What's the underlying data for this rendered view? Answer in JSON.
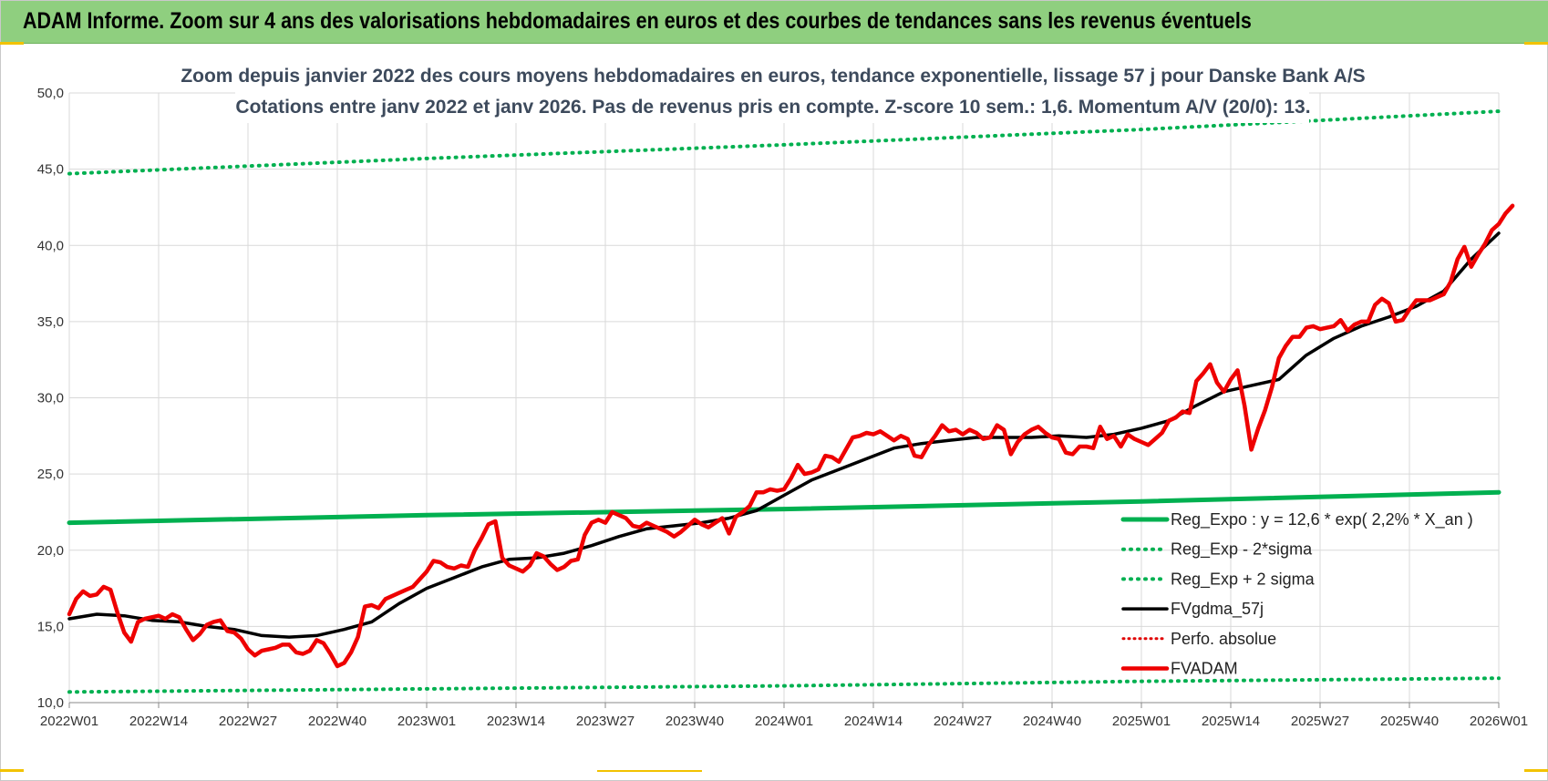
{
  "banner": {
    "title": "ADAM Informe. Zoom sur 4 ans des valorisations hebdomadaires en euros et des courbes de tendances sans les revenus éventuels"
  },
  "colors": {
    "banner": "#8fcf7f",
    "regexpo": "#00b050",
    "bands": "#00b050",
    "smooth": "#000000",
    "perfo": "#e00000",
    "fvadam": "#ee0000",
    "grid": "#d9d9d9"
  },
  "chart_data": {
    "type": "line",
    "title": "Zoom depuis janvier 2022 des cours moyens hebdomadaires en euros, tendance exponentielle, lissage 57 j pour Danske Bank A/S",
    "subtitle": "Cotations entre janv 2022 et janv 2026. Pas de revenus pris en compte. Z-score 10 sem.: 1,6. Momentum A/V (20/0): 13.",
    "xlabel": "",
    "ylabel": "",
    "x_tick_labels": [
      "2022W01",
      "2022W14",
      "2022W27",
      "2022W40",
      "2023W01",
      "2023W14",
      "2023W27",
      "2023W40",
      "2024W01",
      "2024W14",
      "2024W27",
      "2024W40",
      "2025W01",
      "2025W14",
      "2025W27",
      "2025W40",
      "2026W01"
    ],
    "y_tick_labels": [
      "10,0",
      "15,0",
      "20,0",
      "25,0",
      "30,0",
      "35,0",
      "40,0",
      "45,0",
      "50,0"
    ],
    "x_range_weeks": [
      0,
      208
    ],
    "ylim": [
      10,
      50
    ],
    "grid": true,
    "legend_position": "bottom-right",
    "series": [
      {
        "name": "Reg_Expo : y = 12,6 * exp( 2,2% *  X_an )",
        "style": "solid-thick",
        "points": [
          [
            0,
            21.8
          ],
          [
            52,
            22.3
          ],
          [
            104,
            22.7
          ],
          [
            156,
            23.2
          ],
          [
            208,
            23.8
          ]
        ]
      },
      {
        "name": "Reg_Exp - 2*sigma",
        "style": "dotted",
        "points": [
          [
            0,
            10.7
          ],
          [
            52,
            10.9
          ],
          [
            104,
            11.1
          ],
          [
            156,
            11.4
          ],
          [
            208,
            11.6
          ]
        ]
      },
      {
        "name": "Reg_Exp + 2 sigma",
        "style": "dotted",
        "points": [
          [
            0,
            44.7
          ],
          [
            52,
            45.7
          ],
          [
            104,
            46.6
          ],
          [
            156,
            47.6
          ],
          [
            208,
            48.8
          ]
        ]
      },
      {
        "name": "FVgdma_57j",
        "style": "solid",
        "points": [
          [
            0,
            15.5
          ],
          [
            4,
            15.8
          ],
          [
            8,
            15.7
          ],
          [
            12,
            15.4
          ],
          [
            16,
            15.3
          ],
          [
            20,
            15.0
          ],
          [
            24,
            14.8
          ],
          [
            28,
            14.4
          ],
          [
            32,
            14.3
          ],
          [
            36,
            14.4
          ],
          [
            40,
            14.8
          ],
          [
            44,
            15.3
          ],
          [
            48,
            16.5
          ],
          [
            52,
            17.5
          ],
          [
            56,
            18.2
          ],
          [
            60,
            18.9
          ],
          [
            64,
            19.4
          ],
          [
            68,
            19.5
          ],
          [
            72,
            19.8
          ],
          [
            76,
            20.3
          ],
          [
            80,
            20.9
          ],
          [
            84,
            21.4
          ],
          [
            88,
            21.6
          ],
          [
            92,
            21.8
          ],
          [
            96,
            22.1
          ],
          [
            100,
            22.6
          ],
          [
            104,
            23.6
          ],
          [
            108,
            24.6
          ],
          [
            112,
            25.3
          ],
          [
            116,
            26.0
          ],
          [
            120,
            26.7
          ],
          [
            124,
            27.0
          ],
          [
            128,
            27.2
          ],
          [
            132,
            27.4
          ],
          [
            136,
            27.4
          ],
          [
            140,
            27.4
          ],
          [
            144,
            27.5
          ],
          [
            148,
            27.4
          ],
          [
            152,
            27.6
          ],
          [
            156,
            28.0
          ],
          [
            160,
            28.5
          ],
          [
            164,
            29.5
          ],
          [
            168,
            30.4
          ],
          [
            172,
            30.8
          ],
          [
            176,
            31.2
          ],
          [
            180,
            32.8
          ],
          [
            184,
            33.9
          ],
          [
            188,
            34.7
          ],
          [
            192,
            35.3
          ],
          [
            196,
            36.0
          ],
          [
            200,
            37.0
          ],
          [
            204,
            39.1
          ],
          [
            208,
            40.8
          ]
        ]
      },
      {
        "name": "Perfo. absolue",
        "style": "dotted",
        "points": []
      },
      {
        "name": "FVADAM",
        "style": "solid-thick",
        "points": [
          [
            0,
            15.8
          ],
          [
            1,
            16.8
          ],
          [
            2,
            17.3
          ],
          [
            3,
            17.0
          ],
          [
            4,
            17.1
          ],
          [
            5,
            17.6
          ],
          [
            6,
            17.4
          ],
          [
            7,
            15.9
          ],
          [
            8,
            14.6
          ],
          [
            9,
            14.0
          ],
          [
            10,
            15.3
          ],
          [
            11,
            15.5
          ],
          [
            12,
            15.6
          ],
          [
            13,
            15.7
          ],
          [
            14,
            15.5
          ],
          [
            15,
            15.8
          ],
          [
            16,
            15.6
          ],
          [
            17,
            14.8
          ],
          [
            18,
            14.1
          ],
          [
            19,
            14.5
          ],
          [
            20,
            15.1
          ],
          [
            21,
            15.3
          ],
          [
            22,
            15.4
          ],
          [
            23,
            14.7
          ],
          [
            24,
            14.6
          ],
          [
            25,
            14.2
          ],
          [
            26,
            13.5
          ],
          [
            27,
            13.1
          ],
          [
            28,
            13.4
          ],
          [
            29,
            13.5
          ],
          [
            30,
            13.6
          ],
          [
            31,
            13.8
          ],
          [
            32,
            13.8
          ],
          [
            33,
            13.3
          ],
          [
            34,
            13.2
          ],
          [
            35,
            13.4
          ],
          [
            36,
            14.1
          ],
          [
            37,
            13.9
          ],
          [
            38,
            13.2
          ],
          [
            39,
            12.4
          ],
          [
            40,
            12.6
          ],
          [
            41,
            13.3
          ],
          [
            42,
            14.3
          ],
          [
            43,
            16.3
          ],
          [
            44,
            16.4
          ],
          [
            45,
            16.2
          ],
          [
            46,
            16.8
          ],
          [
            47,
            17.0
          ],
          [
            48,
            17.2
          ],
          [
            49,
            17.4
          ],
          [
            50,
            17.6
          ],
          [
            51,
            18.1
          ],
          [
            52,
            18.6
          ],
          [
            53,
            19.3
          ],
          [
            54,
            19.2
          ],
          [
            55,
            18.9
          ],
          [
            56,
            18.8
          ],
          [
            57,
            19.0
          ],
          [
            58,
            18.9
          ],
          [
            59,
            20.0
          ],
          [
            60,
            20.8
          ],
          [
            61,
            21.7
          ],
          [
            62,
            21.9
          ],
          [
            63,
            19.5
          ],
          [
            64,
            19.0
          ],
          [
            65,
            18.8
          ],
          [
            66,
            18.6
          ],
          [
            67,
            19.0
          ],
          [
            68,
            19.8
          ],
          [
            69,
            19.6
          ],
          [
            70,
            19.1
          ],
          [
            71,
            18.7
          ],
          [
            72,
            18.9
          ],
          [
            73,
            19.3
          ],
          [
            74,
            19.4
          ],
          [
            75,
            21.0
          ],
          [
            76,
            21.8
          ],
          [
            77,
            22.0
          ],
          [
            78,
            21.8
          ],
          [
            79,
            22.5
          ],
          [
            80,
            22.3
          ],
          [
            81,
            22.1
          ],
          [
            82,
            21.6
          ],
          [
            83,
            21.5
          ],
          [
            84,
            21.8
          ],
          [
            85,
            21.6
          ],
          [
            86,
            21.4
          ],
          [
            87,
            21.2
          ],
          [
            88,
            20.9
          ],
          [
            89,
            21.2
          ],
          [
            90,
            21.6
          ],
          [
            91,
            22.0
          ],
          [
            92,
            21.7
          ],
          [
            93,
            21.5
          ],
          [
            94,
            21.8
          ],
          [
            95,
            22.1
          ],
          [
            96,
            21.1
          ],
          [
            97,
            22.2
          ],
          [
            98,
            22.5
          ],
          [
            99,
            22.9
          ],
          [
            100,
            23.8
          ],
          [
            101,
            23.8
          ],
          [
            102,
            24.0
          ],
          [
            103,
            23.9
          ],
          [
            104,
            24.0
          ],
          [
            105,
            24.7
          ],
          [
            106,
            25.6
          ],
          [
            107,
            25.0
          ],
          [
            108,
            25.1
          ],
          [
            109,
            25.3
          ],
          [
            110,
            26.2
          ],
          [
            111,
            26.1
          ],
          [
            112,
            25.8
          ],
          [
            113,
            26.6
          ],
          [
            114,
            27.4
          ],
          [
            115,
            27.5
          ],
          [
            116,
            27.7
          ],
          [
            117,
            27.6
          ],
          [
            118,
            27.8
          ],
          [
            119,
            27.5
          ],
          [
            120,
            27.2
          ],
          [
            121,
            27.5
          ],
          [
            122,
            27.3
          ],
          [
            123,
            26.2
          ],
          [
            124,
            26.1
          ],
          [
            125,
            26.9
          ],
          [
            126,
            27.5
          ],
          [
            127,
            28.2
          ],
          [
            128,
            27.8
          ],
          [
            129,
            27.9
          ],
          [
            130,
            27.6
          ],
          [
            131,
            27.9
          ],
          [
            132,
            27.7
          ],
          [
            133,
            27.3
          ],
          [
            134,
            27.4
          ],
          [
            135,
            28.2
          ],
          [
            136,
            27.9
          ],
          [
            137,
            26.3
          ],
          [
            138,
            27.1
          ],
          [
            139,
            27.6
          ],
          [
            140,
            27.9
          ],
          [
            141,
            28.1
          ],
          [
            142,
            27.7
          ],
          [
            143,
            27.4
          ],
          [
            144,
            27.3
          ],
          [
            145,
            26.4
          ],
          [
            146,
            26.3
          ],
          [
            147,
            26.8
          ],
          [
            148,
            26.8
          ],
          [
            149,
            26.7
          ],
          [
            150,
            28.1
          ],
          [
            151,
            27.3
          ],
          [
            152,
            27.5
          ],
          [
            153,
            26.8
          ],
          [
            154,
            27.6
          ],
          [
            155,
            27.3
          ],
          [
            156,
            27.1
          ],
          [
            157,
            26.9
          ],
          [
            158,
            27.3
          ],
          [
            159,
            27.7
          ],
          [
            160,
            28.5
          ],
          [
            161,
            28.7
          ],
          [
            162,
            29.1
          ],
          [
            163,
            29.0
          ],
          [
            164,
            31.1
          ],
          [
            165,
            31.6
          ],
          [
            166,
            32.2
          ],
          [
            167,
            31.0
          ],
          [
            168,
            30.4
          ],
          [
            169,
            31.2
          ],
          [
            170,
            31.8
          ],
          [
            171,
            29.5
          ],
          [
            172,
            26.6
          ],
          [
            173,
            28.0
          ],
          [
            174,
            29.2
          ],
          [
            175,
            30.7
          ],
          [
            176,
            32.6
          ],
          [
            177,
            33.4
          ],
          [
            178,
            34.0
          ],
          [
            179,
            34.0
          ],
          [
            180,
            34.6
          ],
          [
            181,
            34.7
          ],
          [
            182,
            34.5
          ],
          [
            183,
            34.6
          ],
          [
            184,
            34.7
          ],
          [
            185,
            35.1
          ],
          [
            186,
            34.4
          ],
          [
            187,
            34.8
          ],
          [
            188,
            35.0
          ],
          [
            189,
            35.0
          ],
          [
            190,
            36.1
          ],
          [
            191,
            36.5
          ],
          [
            192,
            36.2
          ],
          [
            193,
            35.0
          ],
          [
            194,
            35.1
          ],
          [
            195,
            35.8
          ],
          [
            196,
            36.4
          ],
          [
            197,
            36.4
          ],
          [
            198,
            36.4
          ],
          [
            199,
            36.6
          ],
          [
            200,
            36.8
          ],
          [
            201,
            37.6
          ],
          [
            202,
            39.1
          ],
          [
            203,
            39.9
          ],
          [
            204,
            38.6
          ],
          [
            205,
            39.4
          ],
          [
            206,
            40.1
          ],
          [
            207,
            41.0
          ],
          [
            208,
            41.4
          ],
          [
            209,
            42.1
          ],
          [
            210,
            42.6
          ]
        ]
      }
    ]
  }
}
